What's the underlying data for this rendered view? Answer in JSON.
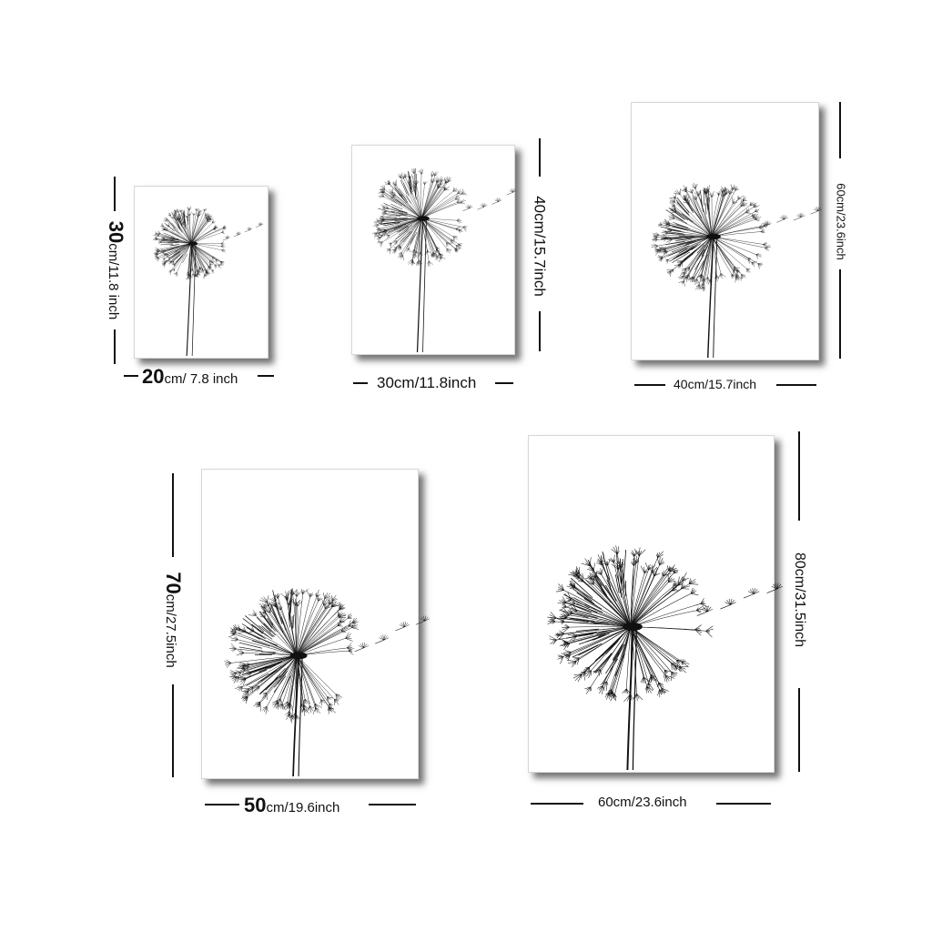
{
  "posters": [
    {
      "width_label_value": "20",
      "width_label_unit": "cm/ 7.8 inch",
      "height_label_value": "30",
      "height_label_unit": "cm/11.8 inch"
    },
    {
      "width_label": "30cm/11.8inch",
      "height_label": "40cm/15.7inch"
    },
    {
      "width_label": "40cm/15.7inch",
      "height_label": "60cm/23.6inch"
    },
    {
      "width_label_value": "50",
      "width_label_unit": "cm/19.6inch",
      "height_label_value": "70",
      "height_label_unit": "cm/27.5inch"
    },
    {
      "width_label": "60cm/23.6inch",
      "height_label": "80cm/31.5inch"
    }
  ],
  "artwork": {
    "subject": "dandelion-icon",
    "ink_color": "#111111",
    "paper_color": "#ffffff"
  }
}
